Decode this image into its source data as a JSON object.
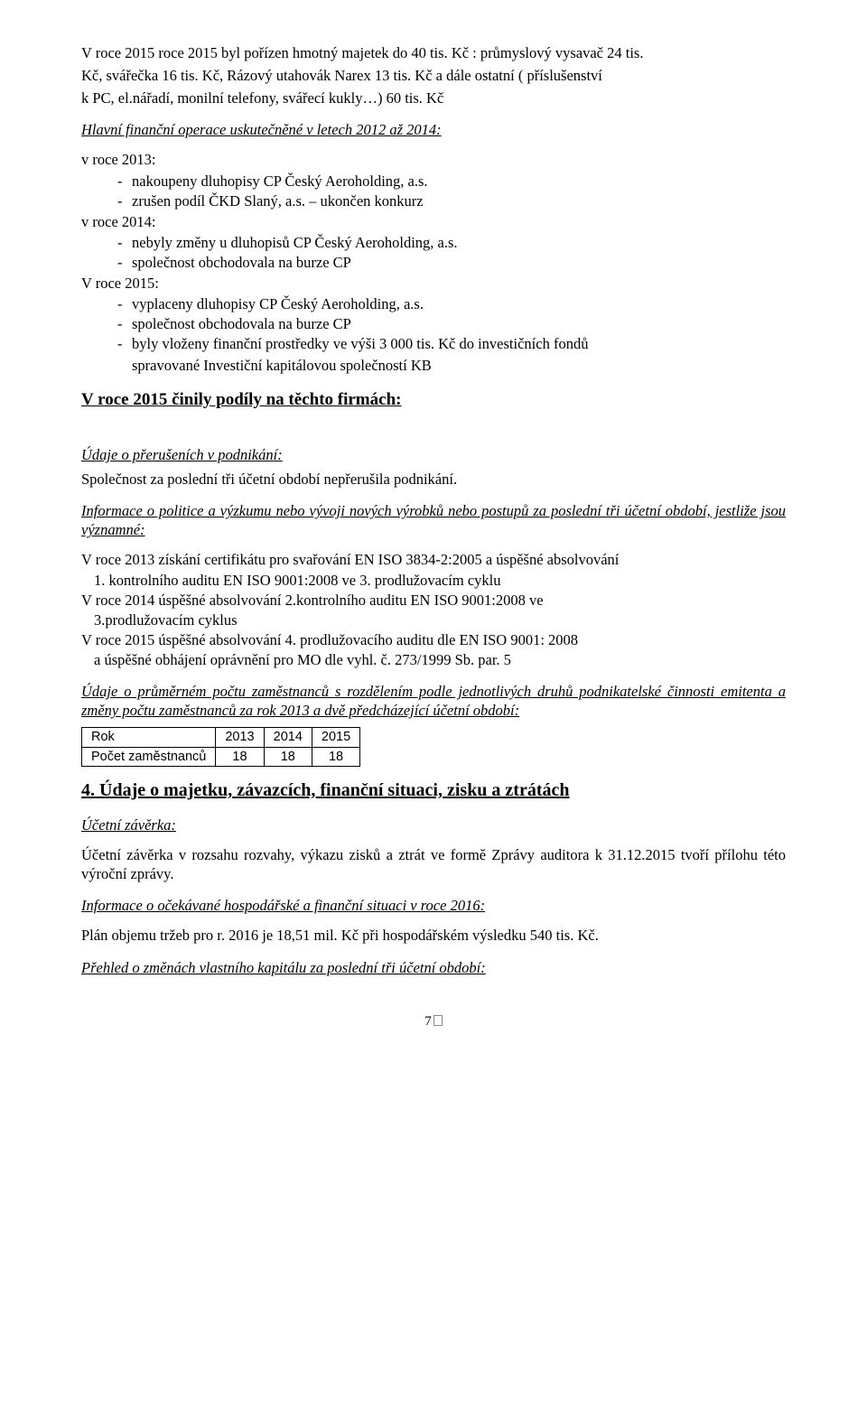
{
  "intro": {
    "l1": "V roce 2015 roce 2015 byl pořízen hmotný majetek do 40 tis. Kč : průmyslový vysavač 24 tis.",
    "l2": "Kč, svářečka  16 tis. Kč, Rázový utahovák Narex 13 tis. Kč  a dále ostatní ( příslušenství",
    "l3": "k PC, el.nářadí, monilní telefony, svářecí kukly…)  60 tis. Kč"
  },
  "finops": {
    "heading": "Hlavní finanční operace uskutečněné v letech 2012 až 2014:",
    "y2013_label": "v roce 2013:",
    "y2013": [
      "nakoupeny dluhopisy CP Český Aeroholding, a.s.",
      "zrušen podíl ČKD Slaný, a.s. – ukončen konkurz"
    ],
    "y2014_label": "v roce 2014:",
    "y2014": [
      "nebyly změny u dluhopisů CP Český Aeroholding, a.s.",
      "společnost obchodovala na burze CP"
    ],
    "y2015_label": "V roce 2015:",
    "y2015": [
      "vyplaceny dluhopisy CP Český Aeroholding, a.s.",
      "společnost obchodovala na burze CP",
      "byly vloženy finanční prostředky ve výši 3 000 tis. Kč do investičních fondů"
    ],
    "y2015_cont": "spravované Investiční kapitálovou společností KB"
  },
  "shares_heading": "V roce 2015 činily podíly na těchto firmách:",
  "interruption": {
    "heading": "Údaje o přerušeních v podnikání:",
    "text": "Společnost za poslední tři účetní období nepřerušila podnikání."
  },
  "research": {
    "heading_l1": "Informace o politice a výzkumu nebo vývoji nových výrobků nebo postupů za poslední tři",
    "heading_l2": "účetní období, jestliže jsou významné:",
    "l1": "V roce 2013 získání certifikátu pro svařování EN ISO 3834-2:2005 a úspěšné absolvování",
    "l2": "1. kontrolního auditu EN ISO 9001:2008 ve 3. prodlužovacím cyklu",
    "l3": "V roce 2014 úspěšné absolvování 2.kontrolního auditu EN ISO 9001:2008 ve",
    "l4": "3.prodlužovacím cyklus",
    "l5": "V roce 2015 úspěšné absolvování 4. prodlužovacího auditu dle EN ISO 9001: 2008",
    "l6": "a úspěšné obhájení oprávnění pro MO dle vyhl. č. 273/1999 Sb. par. 5"
  },
  "employees": {
    "heading_l1": "Údaje o průměrném počtu zaměstnanců s rozdělením podle jednotlivých druhů podnikatelské",
    "heading_l2": "činnosti emitenta a změny počtu zaměstnanců za rok 2013 a dvě  předcházející účetní období:",
    "table": {
      "header": [
        "Rok",
        "2013",
        "2014",
        "2015"
      ],
      "row_label": "Počet zaměstnanců",
      "row_values": [
        "18",
        "18",
        "18"
      ]
    }
  },
  "section4": {
    "heading": "4. Údaje o majetku, závazcích, finanční situaci, zisku a ztrátách",
    "closing_heading": "Účetní závěrka:",
    "closing_l1": "Účetní závěrka v rozsahu rozvahy, výkazu zisků a ztrát ve formě Zprávy auditora k",
    "closing_l2": "31.12.2015 tvoří přílohu této výroční zprávy.",
    "expect_heading": "Informace o očekávané hospodářské a finanční situaci v roce 2016:",
    "plan": "Plán  objemu  tržeb  pro r.  2016 je 18,51 mil.  Kč při  hospodářském  výsledku 540 tis.  Kč.",
    "equity_heading": "Přehled o změnách vlastního kapitálu za poslední tři účetní období:"
  },
  "pagenum": "7"
}
